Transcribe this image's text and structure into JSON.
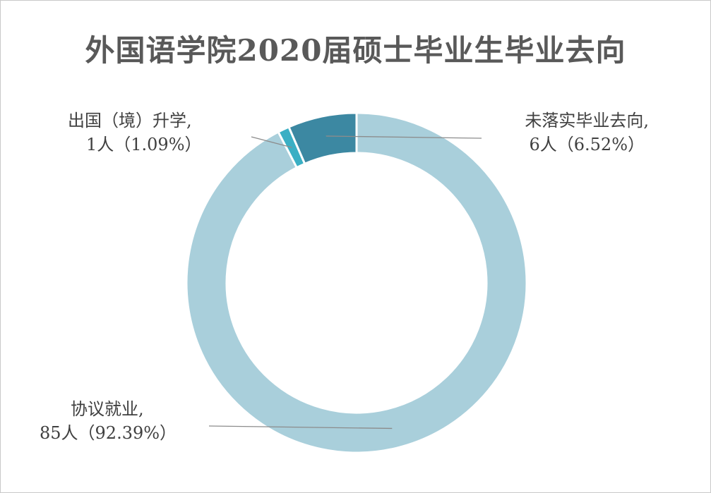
{
  "chart_data": {
    "type": "pie",
    "variant": "donut",
    "title": "外国语学院2020届硕士毕业生毕业去向",
    "slices": [
      {
        "label": "协议就业,",
        "value_text": "85人（92.39%）",
        "count": 85,
        "percent": 92.39,
        "color": "#a9cfdb"
      },
      {
        "label": "出国（境）升学,",
        "value_text": "1人（1.09%）",
        "count": 1,
        "percent": 1.09,
        "color": "#3aafc4"
      },
      {
        "label": "未落实毕业去向,",
        "value_text": "6人（6.52%）",
        "count": 6,
        "percent": 6.52,
        "color": "#3c88a2"
      }
    ],
    "legend": "none",
    "data_labels": "outside-with-leader-lines",
    "start_angle": "top",
    "direction": "clockwise"
  }
}
